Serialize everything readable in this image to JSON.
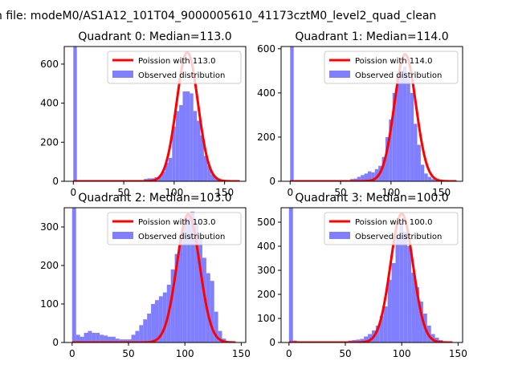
{
  "figure_title": "n file: modeM0/AS1A12_101T04_9000005610_41173cztM0_level2_quad_clean",
  "colors": {
    "observed": "#7f7fff",
    "poisson": "#ff0000"
  },
  "chart_data": [
    {
      "type": "bar",
      "title": "Quadrant 0: Median=113.0",
      "xlim": [
        -9,
        171
      ],
      "ylim": [
        0,
        690
      ],
      "xticks": [
        0,
        50,
        100,
        150
      ],
      "yticks": [
        0,
        200,
        400,
        600
      ],
      "median": 113.0,
      "poisson_label": "Poission with 113.0",
      "poisson_peak": 660,
      "legend": [
        "Poission with 113.0",
        "Observed distribution"
      ],
      "bins_x": [
        0,
        3.5,
        7,
        10.5,
        14,
        17.5,
        21,
        24.5,
        28,
        31.5,
        35,
        38.5,
        42,
        45.5,
        49,
        52.5,
        56,
        59.5,
        63,
        66.5,
        70,
        73.5,
        77,
        80.5,
        84,
        87.5,
        91,
        94.5,
        98,
        101.5,
        105,
        108.5,
        112,
        115.5,
        119,
        122.5,
        126,
        129.5,
        133,
        136.5,
        140,
        143.5,
        147,
        150.5,
        154,
        157.5,
        161
      ],
      "bins_y": [
        690,
        5,
        0,
        0,
        0,
        0,
        0,
        0,
        0,
        0,
        0,
        0,
        0,
        0,
        0,
        0,
        0,
        0,
        0,
        0,
        12,
        15,
        15,
        20,
        25,
        50,
        95,
        120,
        280,
        360,
        390,
        460,
        460,
        450,
        360,
        310,
        235,
        130,
        80,
        35,
        15,
        5,
        3,
        2,
        0,
        0,
        0
      ]
    },
    {
      "type": "bar",
      "title": "Quadrant 1: Median=114.0",
      "xlim": [
        -9,
        171
      ],
      "ylim": [
        0,
        610
      ],
      "xticks": [
        0,
        50,
        100,
        150
      ],
      "yticks": [
        0,
        200,
        400,
        600
      ],
      "median": 114.0,
      "poisson_label": "Poission with 114.0",
      "poisson_peak": 575,
      "legend": [
        "Poission with 114.0",
        "Observed distribution"
      ],
      "bins_x": [
        0,
        3.5,
        7,
        10.5,
        14,
        17.5,
        21,
        24.5,
        28,
        31.5,
        35,
        38.5,
        42,
        45.5,
        49,
        52.5,
        56,
        59.5,
        63,
        66.5,
        70,
        73.5,
        77,
        80.5,
        84,
        87.5,
        91,
        94.5,
        98,
        101.5,
        105,
        108.5,
        112,
        115.5,
        119,
        122.5,
        126,
        129.5,
        133,
        136.5,
        140,
        143.5,
        147,
        150.5,
        154,
        157.5,
        161
      ],
      "bins_y": [
        610,
        5,
        0,
        0,
        0,
        0,
        0,
        0,
        0,
        0,
        0,
        0,
        0,
        0,
        0,
        0,
        0,
        10,
        12,
        20,
        28,
        35,
        45,
        40,
        55,
        70,
        110,
        200,
        280,
        400,
        470,
        500,
        520,
        470,
        400,
        260,
        165,
        75,
        35,
        20,
        10,
        4,
        2,
        0,
        0,
        0,
        0
      ]
    },
    {
      "type": "bar",
      "title": "Quadrant 2: Median=103.0",
      "xlim": [
        -7,
        154
      ],
      "ylim": [
        0,
        350
      ],
      "xticks": [
        0,
        50,
        100,
        150
      ],
      "yticks": [
        0,
        100,
        200,
        300
      ],
      "median": 103.0,
      "poisson_label": "Poission with 103.0",
      "poisson_peak": 333,
      "legend": [
        "Poission with 103.0",
        "Observed distribution"
      ],
      "bins_x": [
        0,
        3.5,
        7,
        10.5,
        14,
        17.5,
        21,
        24.5,
        28,
        31.5,
        35,
        38.5,
        42,
        45.5,
        49,
        52.5,
        56,
        59.5,
        63,
        66.5,
        70,
        73.5,
        77,
        80.5,
        84,
        87.5,
        91,
        94.5,
        98,
        101.5,
        105,
        108.5,
        112,
        115.5,
        119,
        122.5,
        126,
        129.5,
        133,
        136.5,
        140,
        143.5,
        147
      ],
      "bins_y": [
        350,
        20,
        15,
        25,
        30,
        25,
        25,
        20,
        18,
        15,
        15,
        10,
        8,
        8,
        8,
        20,
        30,
        45,
        60,
        75,
        100,
        110,
        120,
        130,
        150,
        190,
        230,
        280,
        320,
        330,
        340,
        310,
        270,
        220,
        180,
        160,
        80,
        30,
        10,
        3,
        0,
        0,
        0
      ]
    },
    {
      "type": "bar",
      "title": "Quadrant 3: Median=100.0",
      "xlim": [
        -7,
        154
      ],
      "ylim": [
        0,
        560
      ],
      "xticks": [
        0,
        50,
        100,
        150
      ],
      "yticks": [
        0,
        100,
        200,
        300,
        400,
        500
      ],
      "median": 100.0,
      "poisson_label": "Poission with 100.0",
      "poisson_peak": 535,
      "legend": [
        "Poission with 100.0",
        "Observed distribution"
      ],
      "bins_x": [
        0,
        3.5,
        7,
        10.5,
        14,
        17.5,
        21,
        24.5,
        28,
        31.5,
        35,
        38.5,
        42,
        45.5,
        49,
        52.5,
        56,
        59.5,
        63,
        66.5,
        70,
        73.5,
        77,
        80.5,
        84,
        87.5,
        91,
        94.5,
        98,
        101.5,
        105,
        108.5,
        112,
        115.5,
        119,
        122.5,
        126,
        129.5,
        133,
        136.5,
        140
      ],
      "bins_y": [
        560,
        8,
        0,
        0,
        0,
        0,
        0,
        0,
        0,
        0,
        0,
        0,
        0,
        0,
        5,
        8,
        10,
        12,
        15,
        25,
        35,
        50,
        70,
        110,
        150,
        260,
        330,
        440,
        500,
        460,
        400,
        290,
        230,
        170,
        120,
        70,
        35,
        20,
        10,
        5,
        0
      ]
    }
  ]
}
